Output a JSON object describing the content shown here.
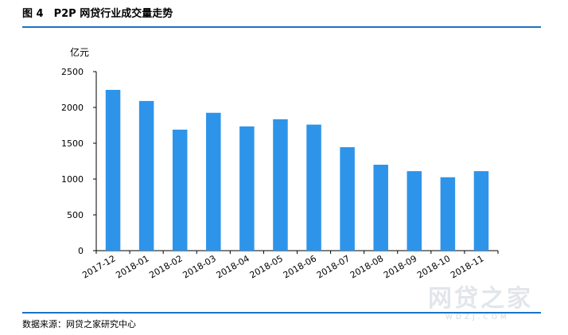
{
  "header": {
    "figure_title": "图 4　P2P 网贷行业成交量走势"
  },
  "footer": {
    "source": "数据来源：网贷之家研究中心"
  },
  "watermark": {
    "text": "网贷之家",
    "sub": "WDZJ.COM"
  },
  "colors": {
    "bar": "#2e94ea",
    "rule": "#1a73c6",
    "axis": "#000000"
  },
  "chart_data": {
    "type": "bar",
    "title": "P2P 网贷行业成交量走势",
    "ylabel": "亿元",
    "xlabel": "",
    "ylim": [
      0,
      2500
    ],
    "yticks": [
      0,
      500,
      1000,
      1500,
      2000,
      2500
    ],
    "grid": false,
    "categories": [
      "2017-12",
      "2018-01",
      "2018-02",
      "2018-03",
      "2018-04",
      "2018-05",
      "2018-06",
      "2018-07",
      "2018-08",
      "2018-09",
      "2018-10",
      "2018-11"
    ],
    "values": [
      2245,
      2090,
      1690,
      1925,
      1735,
      1835,
      1760,
      1445,
      1200,
      1110,
      1025,
      1110
    ]
  }
}
